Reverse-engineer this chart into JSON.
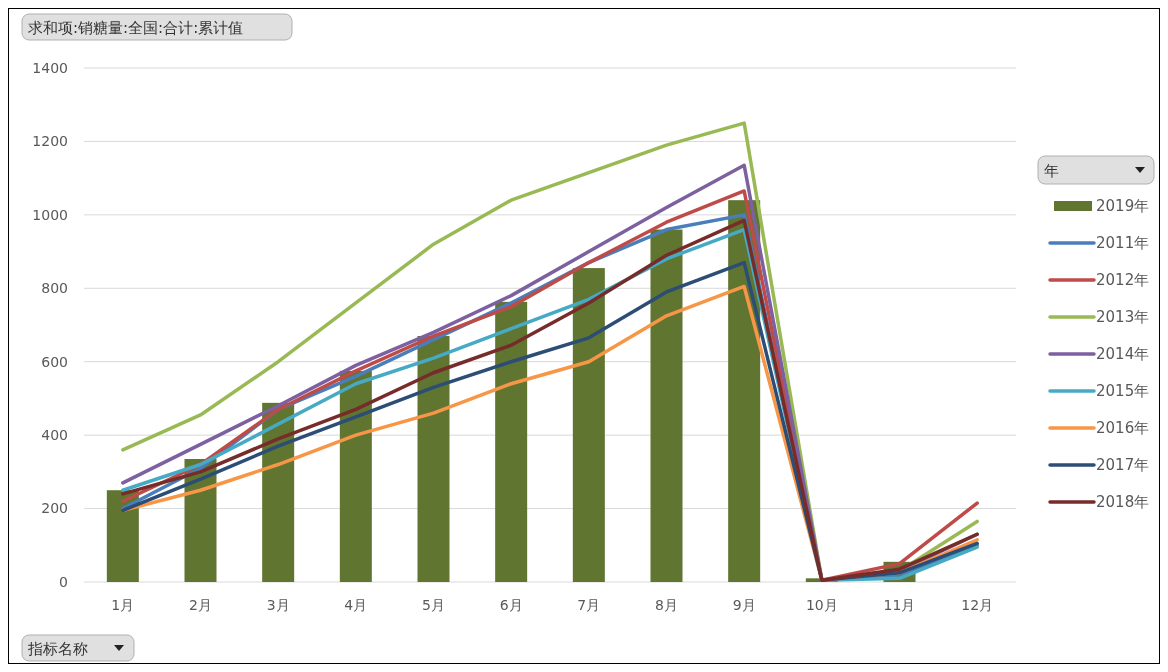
{
  "chart_data": {
    "type": "bar",
    "title": "求和项:销糖量:全国:合计:累计值",
    "xlabel": "指标名称",
    "legend_title": "年",
    "categories": [
      "1月",
      "2月",
      "3月",
      "4月",
      "5月",
      "6月",
      "7月",
      "8月",
      "9月",
      "10月",
      "11月",
      "12月"
    ],
    "series": [
      {
        "name": "2019年",
        "color": "#607530",
        "values": [
          250,
          335,
          488,
          575,
          670,
          763,
          855,
          960,
          1040,
          10,
          55,
          null
        ]
      },
      {
        "name": "2011年",
        "type": "line",
        "color": "#4a7ebb",
        "values": [
          200,
          310,
          470,
          560,
          660,
          760,
          870,
          960,
          1000,
          5,
          20,
          100
        ]
      },
      {
        "name": "2012年",
        "type": "line",
        "color": "#be4b48",
        "values": [
          220,
          320,
          470,
          575,
          670,
          750,
          870,
          980,
          1065,
          5,
          50,
          215
        ]
      },
      {
        "name": "2013年",
        "type": "line",
        "color": "#98b954",
        "values": [
          360,
          455,
          600,
          760,
          920,
          1040,
          1115,
          1190,
          1250,
          5,
          30,
          165
        ]
      },
      {
        "name": "2014年",
        "type": "line",
        "color": "#7d60a0",
        "values": [
          270,
          375,
          480,
          590,
          680,
          780,
          900,
          1020,
          1135,
          5,
          30,
          130
        ]
      },
      {
        "name": "2015年",
        "type": "line",
        "color": "#46aac5",
        "values": [
          250,
          320,
          430,
          540,
          610,
          690,
          770,
          880,
          960,
          5,
          10,
          95
        ]
      },
      {
        "name": "2016年",
        "type": "line",
        "color": "#f79646",
        "values": [
          195,
          250,
          320,
          400,
          460,
          540,
          600,
          725,
          805,
          5,
          25,
          115
        ]
      },
      {
        "name": "2017年",
        "type": "line",
        "color": "#2c4d75",
        "values": [
          195,
          280,
          370,
          450,
          530,
          600,
          665,
          790,
          870,
          5,
          25,
          105
        ]
      },
      {
        "name": "2018年",
        "type": "line",
        "color": "#772c2a",
        "values": [
          240,
          300,
          390,
          470,
          570,
          645,
          760,
          890,
          985,
          5,
          35,
          130
        ]
      }
    ],
    "ylim": [
      0,
      1400
    ],
    "yticks": [
      0,
      200,
      400,
      600,
      800,
      1000,
      1200,
      1400
    ],
    "grid": "y",
    "legend": "right",
    "line_style": "solid",
    "marker": "none"
  }
}
